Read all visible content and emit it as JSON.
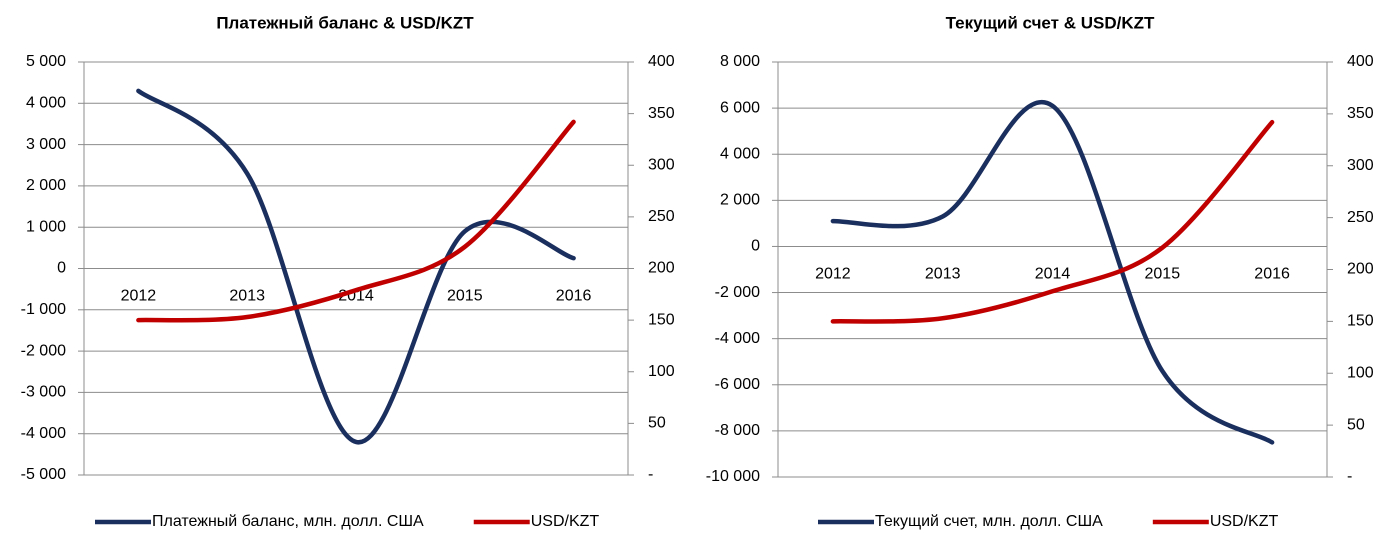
{
  "chart_data": [
    {
      "type": "line",
      "title": "Платежный баланс & USD/KZT",
      "categories": [
        "2012",
        "2013",
        "2014",
        "2015",
        "2016"
      ],
      "series": [
        {
          "name": "Платежный баланс, млн. долл. США",
          "color": "#1b2f5e",
          "values": [
            4300,
            2300,
            -4200,
            900,
            250
          ]
        },
        {
          "name": "USD/KZT",
          "color": "#c00000",
          "axis": "y2",
          "values": [
            150,
            153,
            179,
            221,
            342
          ]
        }
      ],
      "ylim": [
        -5000,
        5000
      ],
      "yticks": [
        {
          "value": -5000,
          "label": "-5 000"
        },
        {
          "value": -4000,
          "label": "-4 000"
        },
        {
          "value": -3000,
          "label": "-3 000"
        },
        {
          "value": -2000,
          "label": "-2 000"
        },
        {
          "value": -1000,
          "label": "-1 000"
        },
        0,
        {
          "value": 1000,
          "label": "1 000"
        },
        {
          "value": 2000,
          "label": "2 000"
        },
        {
          "value": 3000,
          "label": "3 000"
        },
        {
          "value": 4000,
          "label": "4 000"
        },
        {
          "value": 5000,
          "label": "5 000"
        }
      ],
      "y2lim": [
        0,
        400
      ],
      "y2ticks": [
        {
          "value": 0,
          "label": "-"
        },
        50,
        100,
        150,
        200,
        250,
        300,
        350,
        400
      ],
      "grid": true
    },
    {
      "type": "line",
      "title": "Текущий счет & USD/KZT",
      "categories": [
        "2012",
        "2013",
        "2014",
        "2015",
        "2016"
      ],
      "series": [
        {
          "name": "Текущий счет, млн. долл. США",
          "color": "#1b2f5e",
          "values": [
            1100,
            1300,
            6100,
            -5400,
            -8500
          ]
        },
        {
          "name": "USD/KZT",
          "color": "#c00000",
          "axis": "y2",
          "values": [
            150,
            153,
            179,
            221,
            342
          ]
        }
      ],
      "ylim": [
        -10000,
        8000
      ],
      "yticks": [
        {
          "value": -10000,
          "label": "-10 000"
        },
        {
          "value": -8000,
          "label": "-8 000"
        },
        {
          "value": -6000,
          "label": "-6 000"
        },
        {
          "value": -4000,
          "label": "-4 000"
        },
        {
          "value": -2000,
          "label": "-2 000"
        },
        0,
        {
          "value": 2000,
          "label": "2 000"
        },
        {
          "value": 4000,
          "label": "4 000"
        },
        {
          "value": 6000,
          "label": "6 000"
        },
        {
          "value": 8000,
          "label": "8 000"
        }
      ],
      "y2lim": [
        0,
        400
      ],
      "y2ticks": [
        {
          "value": 0,
          "label": "-"
        },
        50,
        100,
        150,
        200,
        250,
        300,
        350,
        400
      ],
      "grid": true
    }
  ]
}
